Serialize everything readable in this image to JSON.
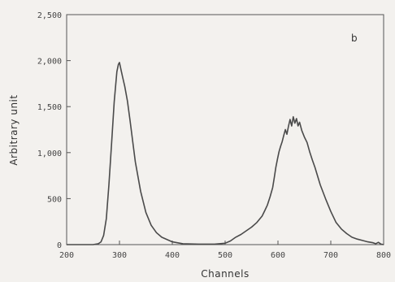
{
  "chart_data": {
    "type": "line",
    "title": "",
    "panel_label": "b",
    "xlabel": "Channels",
    "ylabel": "Arbitrary   unit",
    "xlim": [
      200,
      800
    ],
    "ylim": [
      0,
      2500
    ],
    "x_ticks": [
      200,
      300,
      400,
      500,
      600,
      700,
      800
    ],
    "x_tick_labels": [
      "200",
      "300",
      "400",
      "500",
      "600",
      "700",
      "800"
    ],
    "y_ticks": [
      0,
      500,
      1000,
      1500,
      2000,
      2500
    ],
    "y_tick_labels": [
      "0",
      "500",
      "1,000",
      "1,500",
      "2,000",
      "2,500"
    ],
    "grid": false,
    "series": [
      {
        "x": [
          200,
          250,
          260,
          265,
          270,
          275,
          280,
          285,
          290,
          295,
          298,
          300,
          303,
          306,
          310,
          315,
          320,
          325,
          330,
          340,
          350,
          360,
          370,
          380,
          400,
          420,
          450,
          480,
          500,
          510,
          520,
          530,
          540,
          550,
          560,
          570,
          575,
          580,
          585,
          590,
          593,
          596,
          599,
          602,
          605,
          608,
          611,
          614,
          617,
          620,
          623,
          626,
          629,
          632,
          635,
          638,
          641,
          645,
          650,
          655,
          660,
          665,
          670,
          680,
          690,
          700,
          710,
          720,
          730,
          740,
          750,
          760,
          770,
          780,
          785,
          790,
          795,
          800
        ],
        "y": [
          0,
          0,
          10,
          30,
          100,
          280,
          650,
          1100,
          1550,
          1880,
          1960,
          1980,
          1900,
          1820,
          1720,
          1560,
          1350,
          1120,
          900,
          580,
          350,
          210,
          130,
          80,
          30,
          10,
          5,
          5,
          15,
          40,
          80,
          110,
          150,
          190,
          240,
          310,
          370,
          430,
          520,
          620,
          730,
          840,
          930,
          1010,
          1070,
          1120,
          1190,
          1250,
          1200,
          1290,
          1360,
          1290,
          1390,
          1320,
          1370,
          1290,
          1330,
          1240,
          1170,
          1110,
          1010,
          920,
          840,
          650,
          500,
          360,
          240,
          170,
          120,
          80,
          60,
          45,
          30,
          20,
          10,
          25,
          5,
          0
        ]
      }
    ]
  },
  "colors": {
    "line": "#4a4a4a",
    "axis": "#555555",
    "background": "#f3f1ee"
  }
}
